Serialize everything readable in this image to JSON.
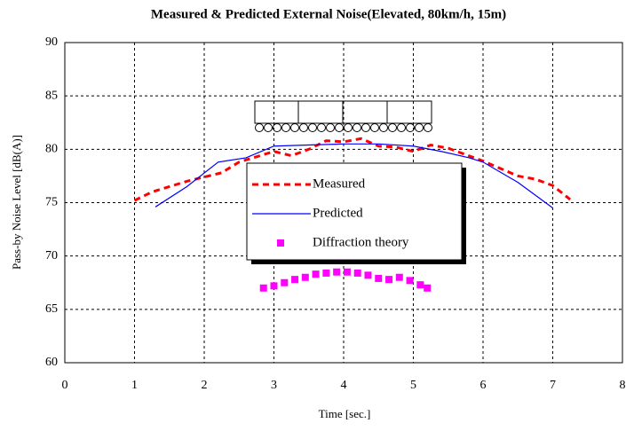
{
  "chart_data": {
    "type": "line",
    "title": "Measured & Predicted External Noise(Elevated, 80km/h, 15m)",
    "x_label": "Time [sec.]",
    "y_label": "Pass-by Noise Level [dB(A)]",
    "xlim": [
      0,
      8
    ],
    "xticks": [
      0,
      1,
      2,
      3,
      4,
      5,
      6,
      7,
      8
    ],
    "ylim": [
      60,
      90
    ],
    "yticks": [
      60,
      65,
      70,
      75,
      80,
      85,
      90
    ],
    "grid": true,
    "legend": "center",
    "series": [
      {
        "name": "Measured",
        "color": "#ff0000",
        "style": "dashed",
        "x": [
          1.0,
          1.25,
          1.5,
          1.75,
          2.0,
          2.25,
          2.5,
          2.75,
          3.0,
          3.25,
          3.5,
          3.75,
          4.0,
          4.25,
          4.5,
          4.75,
          5.0,
          5.25,
          5.5,
          5.75,
          6.0,
          6.25,
          6.5,
          6.75,
          7.0,
          7.25
        ],
        "values": [
          75.2,
          76.0,
          76.5,
          77.0,
          77.4,
          77.8,
          78.8,
          79.3,
          79.8,
          79.4,
          80.0,
          80.8,
          80.7,
          81.0,
          80.3,
          80.2,
          79.8,
          80.4,
          80.1,
          79.5,
          78.9,
          78.2,
          77.5,
          77.2,
          76.6,
          75.3
        ]
      },
      {
        "name": "Predicted",
        "color": "#0000ff",
        "style": "solid",
        "x": [
          1.3,
          1.75,
          2.2,
          2.6,
          3.0,
          3.5,
          4.0,
          4.5,
          5.0,
          5.4,
          5.8,
          6.0,
          6.5,
          7.0
        ],
        "values": [
          74.6,
          76.5,
          78.8,
          79.2,
          80.3,
          80.4,
          80.5,
          80.5,
          80.3,
          79.8,
          79.2,
          78.8,
          76.9,
          74.5
        ]
      },
      {
        "name": "Diffraction theory",
        "color": "#ff00ff",
        "style": "markers",
        "x": [
          2.85,
          3.0,
          3.15,
          3.3,
          3.45,
          3.6,
          3.75,
          3.9,
          4.05,
          4.2,
          4.35,
          4.5,
          4.65,
          4.8,
          4.95,
          5.1,
          5.2
        ],
        "values": [
          67.0,
          67.2,
          67.5,
          67.8,
          68.0,
          68.3,
          68.4,
          68.5,
          68.5,
          68.4,
          68.2,
          67.9,
          67.8,
          68.0,
          67.7,
          67.3,
          67.0
        ]
      }
    ]
  }
}
